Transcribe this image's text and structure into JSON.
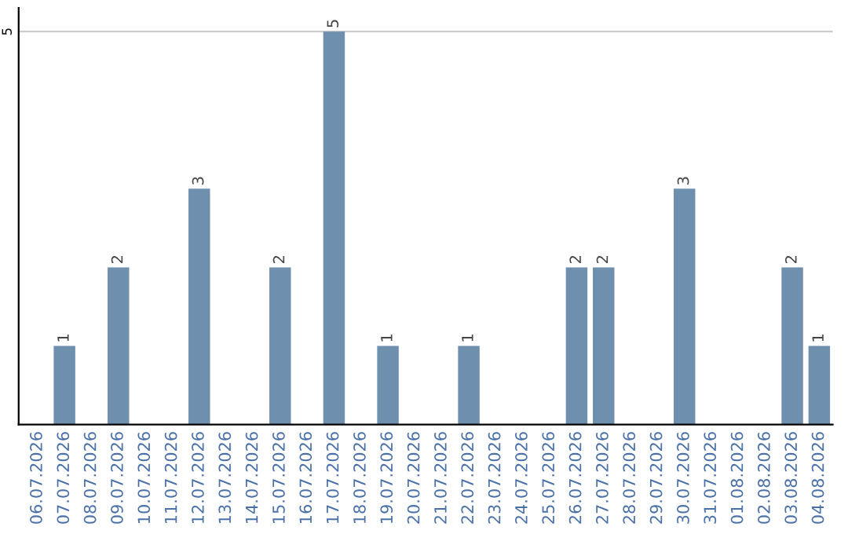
{
  "chart_data": {
    "type": "bar",
    "categories": [
      "06.07.2026",
      "07.07.2026",
      "08.07.2026",
      "09.07.2026",
      "10.07.2026",
      "11.07.2026",
      "12.07.2026",
      "13.07.2026",
      "14.07.2026",
      "15.07.2026",
      "16.07.2026",
      "17.07.2026",
      "18.07.2026",
      "19.07.2026",
      "20.07.2026",
      "21.07.2026",
      "22.07.2026",
      "23.07.2026",
      "24.07.2026",
      "25.07.2026",
      "26.07.2026",
      "27.07.2026",
      "28.07.2026",
      "29.07.2026",
      "30.07.2026",
      "31.07.2026",
      "01.08.2026",
      "02.08.2026",
      "03.08.2026",
      "04.08.2026"
    ],
    "values": [
      0,
      1,
      0,
      2,
      0,
      0,
      3,
      0,
      0,
      2,
      0,
      5,
      0,
      1,
      0,
      0,
      1,
      0,
      0,
      0,
      2,
      2,
      0,
      0,
      3,
      0,
      0,
      0,
      2,
      1
    ],
    "value_labels": [
      null,
      "1",
      null,
      "2",
      null,
      null,
      "3",
      null,
      null,
      "2",
      null,
      "5",
      null,
      "1",
      null,
      null,
      "1",
      null,
      null,
      null,
      "2",
      "2",
      null,
      null,
      "3",
      null,
      null,
      null,
      "2",
      "1"
    ],
    "color": "#6f8fae",
    "ylim": [
      0,
      5.3
    ],
    "yticks": [
      5
    ],
    "grid": "y"
  }
}
